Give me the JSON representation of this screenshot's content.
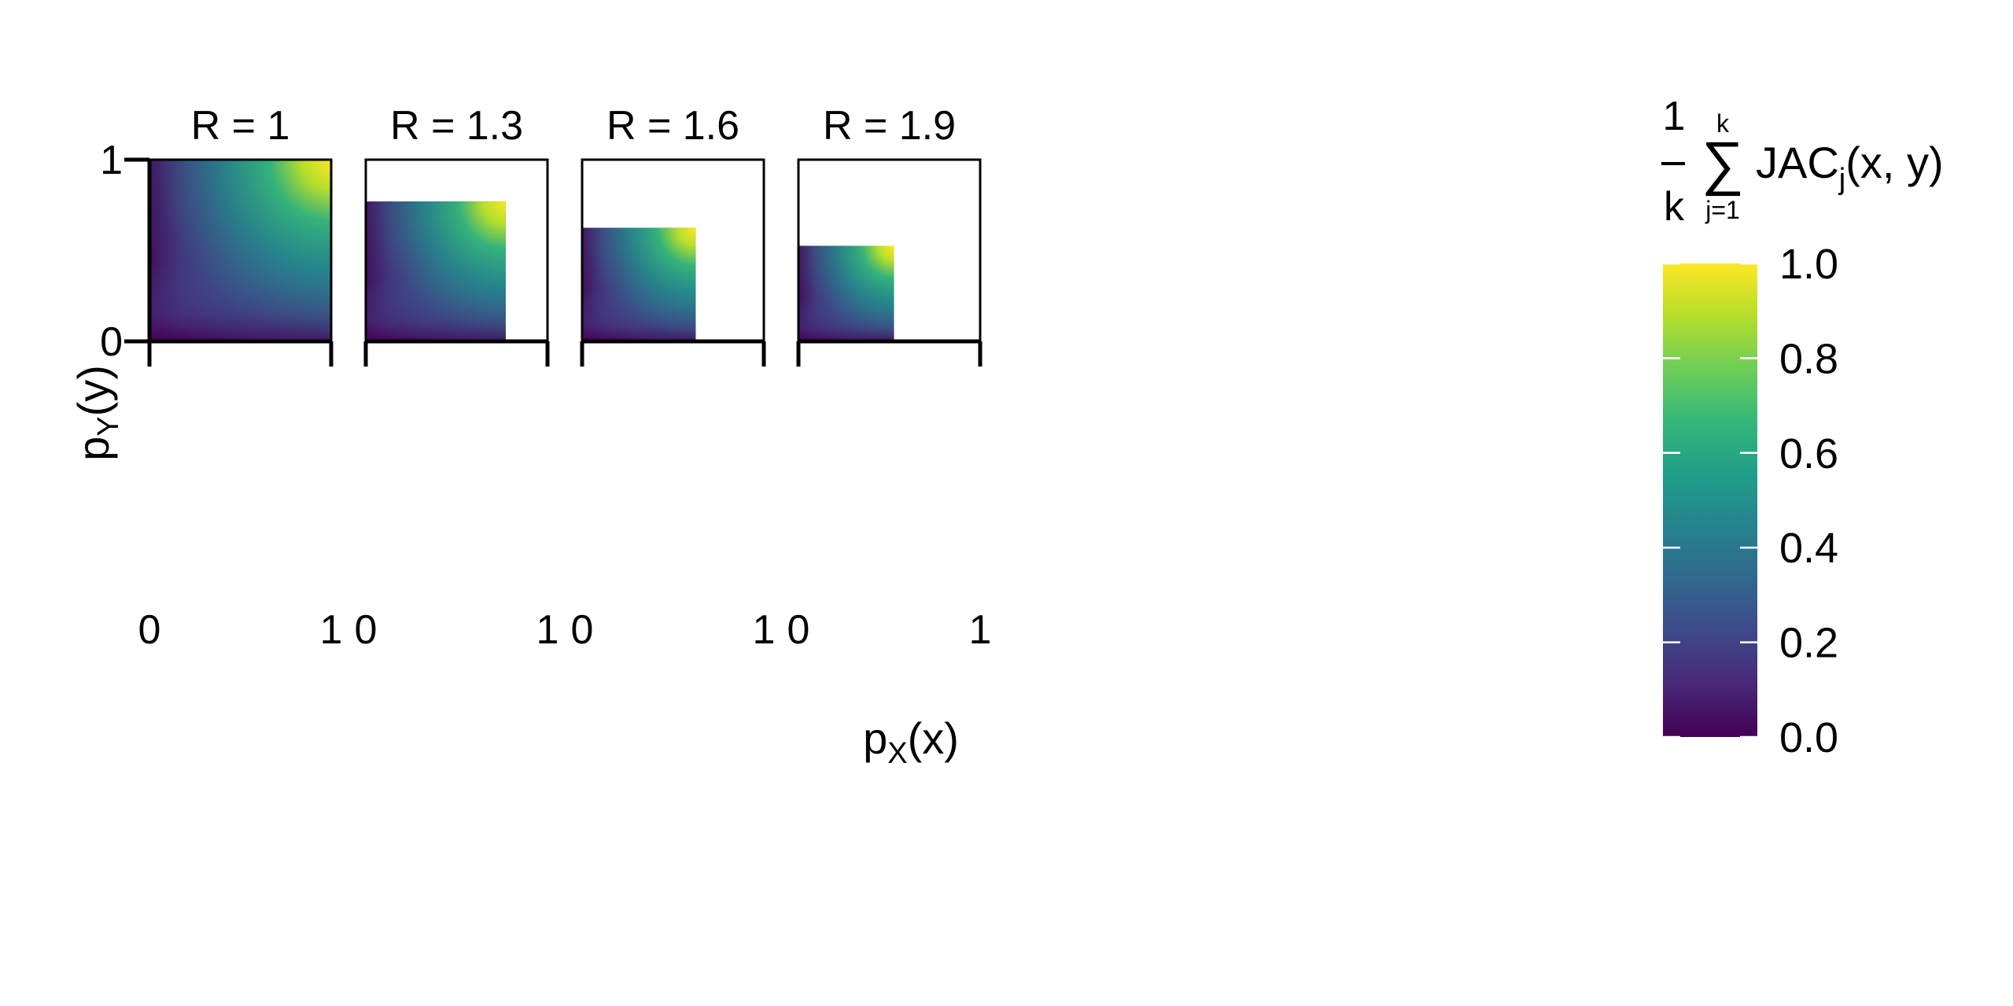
{
  "chart_data": {
    "type": "heatmap",
    "panels": [
      {
        "label": "R = 1",
        "R": 1.0,
        "region_extent": 1.0
      },
      {
        "label": "R = 1.3",
        "R": 1.3,
        "region_extent": 0.77
      },
      {
        "label": "R = 1.6",
        "R": 1.6,
        "region_extent": 0.625
      },
      {
        "label": "R = 1.9",
        "R": 1.9,
        "region_extent": 0.526
      }
    ],
    "xlabel": {
      "base": "p",
      "sub": "X",
      "rest": "(x)"
    },
    "ylabel": {
      "base": "p",
      "sub": "Y",
      "rest": "(y)"
    },
    "xlim": [
      0,
      1
    ],
    "ylim": [
      0,
      1
    ],
    "xticks": [
      "0",
      "1"
    ],
    "yticks": [
      "0",
      "1"
    ],
    "grid": false,
    "colorbar": {
      "title": {
        "num": "1",
        "den": "k",
        "sum": "∑",
        "upper": "k",
        "lower": "j=1",
        "term": "JAC",
        "term_sub": "j",
        "args": "(x, y)"
      },
      "min": 0.0,
      "max": 1.0,
      "ticks": [
        "0.0",
        "0.2",
        "0.4",
        "0.6",
        "0.8",
        "1.0"
      ],
      "colormap": "viridis",
      "placement": "right"
    },
    "colors": {
      "viridis_low": "#440154",
      "viridis_mid": "#21918c",
      "viridis_high": "#fde725",
      "frame": "#000000"
    }
  }
}
